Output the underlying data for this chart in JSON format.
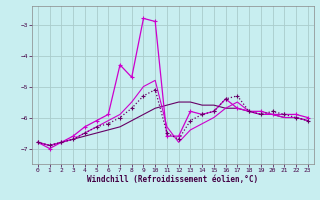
{
  "background_color": "#c8eef0",
  "grid_color": "#aacccc",
  "line_color_main": "#cc00cc",
  "line_color_dark": "#660066",
  "xlim": [
    -0.5,
    23.5
  ],
  "ylim": [
    -7.5,
    -2.4
  ],
  "yticks": [
    -7,
    -6,
    -5,
    -4,
    -3
  ],
  "xticks": [
    0,
    1,
    2,
    3,
    4,
    5,
    6,
    7,
    8,
    9,
    10,
    11,
    12,
    13,
    14,
    15,
    16,
    17,
    18,
    19,
    20,
    21,
    22,
    23
  ],
  "xlabel": "Windchill (Refroidissement éolien,°C)",
  "s1_x": [
    0,
    1,
    2,
    3,
    4,
    5,
    6,
    7,
    8,
    9,
    10,
    11,
    12,
    13,
    14,
    15,
    16,
    17,
    18,
    19,
    20,
    21,
    22,
    23
  ],
  "s1_y": [
    -6.8,
    -7.0,
    -6.8,
    -6.6,
    -6.3,
    -6.1,
    -5.9,
    -4.3,
    -4.7,
    -2.8,
    -2.9,
    -6.6,
    -6.6,
    -5.8,
    -5.9,
    -5.8,
    -5.4,
    -5.7,
    -5.8,
    -5.8,
    -5.9,
    -5.9,
    -5.9,
    -6.0
  ],
  "s2_x": [
    0,
    1,
    2,
    3,
    4,
    5,
    6,
    7,
    8,
    9,
    10,
    11,
    12,
    13,
    14,
    15,
    16,
    17,
    18,
    19,
    20,
    21,
    22,
    23
  ],
  "s2_y": [
    -6.8,
    -6.9,
    -6.8,
    -6.7,
    -6.6,
    -6.5,
    -6.4,
    -6.3,
    -6.1,
    -5.9,
    -5.7,
    -5.6,
    -5.5,
    -5.5,
    -5.6,
    -5.6,
    -5.7,
    -5.7,
    -5.8,
    -5.9,
    -5.9,
    -6.0,
    -6.0,
    -6.1
  ],
  "s3_x": [
    0,
    1,
    2,
    3,
    4,
    5,
    6,
    7,
    8,
    9,
    10,
    11,
    12,
    13,
    14,
    15,
    16,
    17,
    18,
    19,
    20,
    21,
    22,
    23
  ],
  "s3_y": [
    -6.8,
    -6.9,
    -6.8,
    -6.7,
    -6.5,
    -6.3,
    -6.2,
    -6.0,
    -5.7,
    -5.3,
    -5.1,
    -6.5,
    -6.7,
    -6.1,
    -5.9,
    -5.8,
    -5.4,
    -5.3,
    -5.8,
    -5.9,
    -5.8,
    -5.9,
    -6.0,
    -6.1
  ],
  "s4_x": [
    0,
    1,
    2,
    3,
    4,
    5,
    6,
    7,
    8,
    9,
    10,
    11,
    12,
    13,
    14,
    15,
    16,
    17,
    18,
    19,
    20,
    21,
    22,
    23
  ],
  "s4_y": [
    -6.8,
    -6.9,
    -6.8,
    -6.7,
    -6.5,
    -6.3,
    -6.1,
    -5.9,
    -5.5,
    -5.0,
    -4.8,
    -6.3,
    -6.8,
    -6.4,
    -6.2,
    -6.0,
    -5.7,
    -5.5,
    -5.8,
    -5.9,
    -5.9,
    -6.0,
    -6.0,
    -6.1
  ]
}
